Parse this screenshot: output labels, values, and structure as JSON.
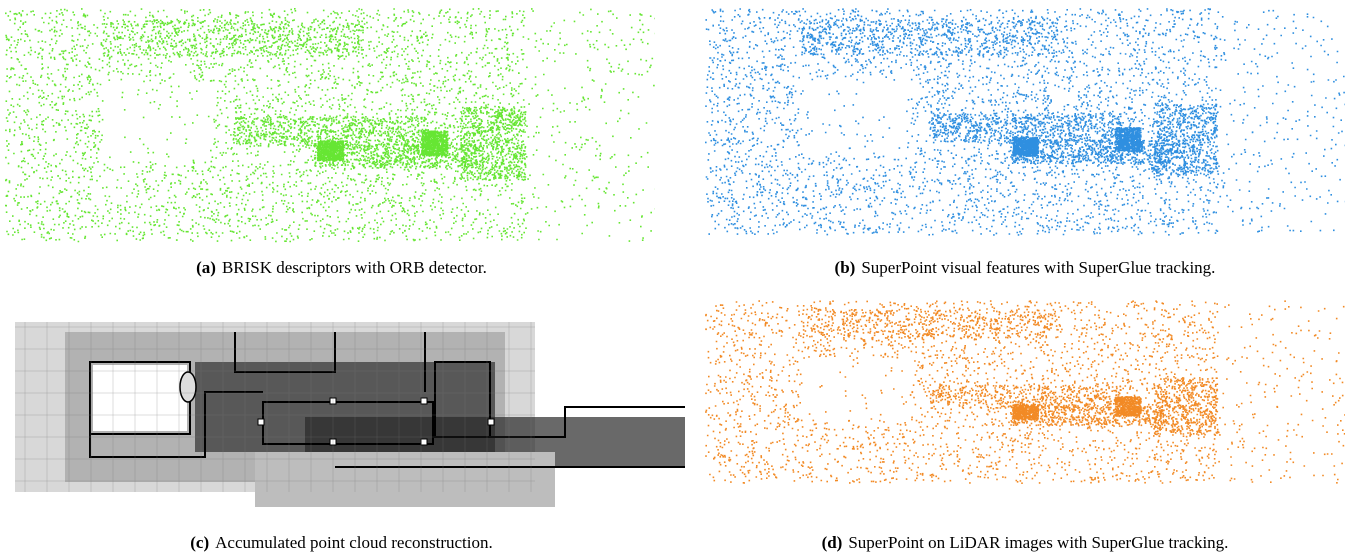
{
  "figure": {
    "panels": [
      {
        "id": "a",
        "label": "(a)",
        "caption": "BRISK descriptors with ORB detector.",
        "color": "#66e633"
      },
      {
        "id": "b",
        "label": "(b)",
        "caption": "SuperPoint visual features with SuperGlue tracking.",
        "color": "#2f8fe0"
      },
      {
        "id": "c",
        "label": "(c)",
        "caption": "Accumulated point cloud reconstruction.",
        "color": "#1a1a1a"
      },
      {
        "id": "d",
        "label": "(d)",
        "caption": "SuperPoint on LiDAR images with SuperGlue tracking.",
        "color": "#f28a25"
      }
    ]
  }
}
